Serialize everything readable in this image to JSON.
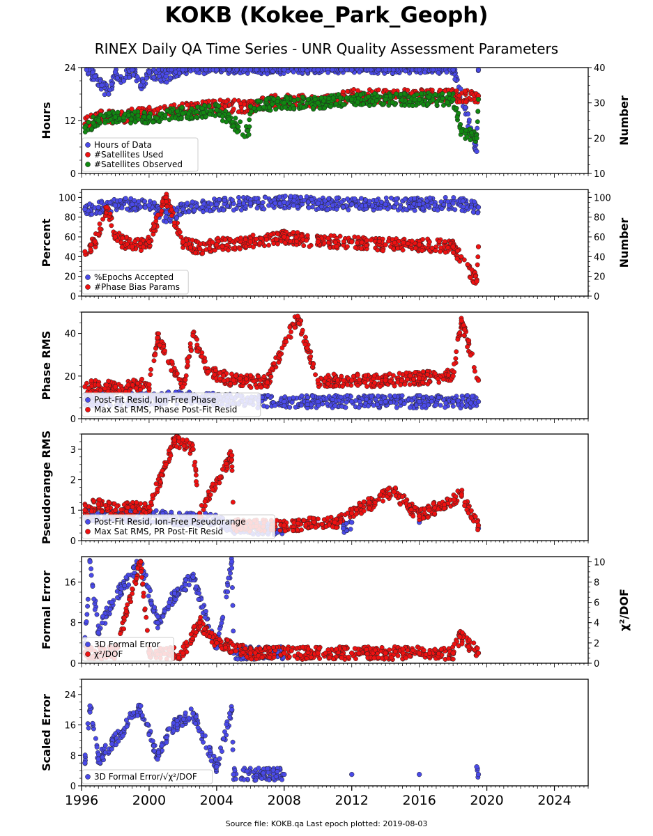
{
  "title": "KOKB (Kokee_Park_Geoph)",
  "subtitle": "RINEX Daily QA Time Series - UNR Quality Assessment Parameters",
  "footer": "Source file: KOKB.qa Last epoch plotted: 2019-08-03",
  "colors": {
    "blue": "#4a4ae8",
    "red": "#ee1111",
    "green": "#118811"
  },
  "chart_data": {
    "type": "scatter",
    "x_axis": {
      "range": [
        1996,
        2026
      ],
      "ticks": [
        1996,
        2000,
        2004,
        2008,
        2012,
        2016,
        2020,
        2024
      ]
    },
    "panels": [
      {
        "left_label": "Hours",
        "right_label": "Number",
        "left_range": [
          0,
          24
        ],
        "left_ticks": [
          0,
          12,
          24
        ],
        "right_range": [
          10,
          40
        ],
        "right_ticks": [
          10,
          20,
          30,
          40
        ],
        "legend": [
          "Hours of Data",
          "#Satellites Used",
          "#Satellites Observed"
        ],
        "series": [
          {
            "name": "Hours of Data",
            "color": "blue",
            "axis": "left",
            "points": [
              [
                1996.3,
                24
              ],
              [
                1996.8,
                22
              ],
              [
                1997.2,
                20
              ],
              [
                1997.6,
                18
              ],
              [
                1998.0,
                23
              ],
              [
                1998.5,
                21
              ],
              [
                1999.0,
                24
              ],
              [
                1999.5,
                20
              ],
              [
                2000.0,
                23
              ],
              [
                2001.0,
                22
              ],
              [
                2002.0,
                24
              ],
              [
                2004.0,
                24
              ],
              [
                2006.0,
                24
              ],
              [
                2008.0,
                24
              ],
              [
                2010.0,
                24
              ],
              [
                2012.0,
                24
              ],
              [
                2014.0,
                24
              ],
              [
                2016.0,
                24
              ],
              [
                2018.0,
                24
              ],
              [
                2019.5,
                24
              ],
              [
                2019.4,
                5
              ]
            ]
          },
          {
            "name": "#Satellites Used",
            "color": "red",
            "axis": "right",
            "points": [
              [
                1996.2,
                24
              ],
              [
                1997.0,
                26
              ],
              [
                1998.0,
                26
              ],
              [
                2000.0,
                27
              ],
              [
                2002.0,
                28
              ],
              [
                2004.0,
                29
              ],
              [
                2006.0,
                29
              ],
              [
                2008.0,
                31
              ],
              [
                2010.0,
                30
              ],
              [
                2012.0,
                32
              ],
              [
                2014.0,
                32
              ],
              [
                2016.0,
                32
              ],
              [
                2018.0,
                32
              ],
              [
                2019.5,
                32
              ]
            ]
          },
          {
            "name": "#Satellites Observed",
            "color": "green",
            "axis": "right",
            "points": [
              [
                1996.2,
                23
              ],
              [
                1997.0,
                25
              ],
              [
                1998.0,
                26
              ],
              [
                2000.0,
                26
              ],
              [
                2002.0,
                27
              ],
              [
                2004.0,
                28
              ],
              [
                2006.0,
                29
              ],
              [
                2008.0,
                30
              ],
              [
                2010.0,
                30
              ],
              [
                2012.0,
                31
              ],
              [
                2014.0,
                31
              ],
              [
                2016.0,
                31
              ],
              [
                2018.0,
                31
              ],
              [
                2019.5,
                31
              ],
              [
                2005.9,
                21
              ],
              [
                2018.5,
                22
              ],
              [
                2019.4,
                20
              ]
            ]
          }
        ]
      },
      {
        "left_label": "Percent",
        "right_label": "Number",
        "left_range": [
          0,
          108
        ],
        "left_ticks": [
          0,
          20,
          40,
          60,
          80,
          100
        ],
        "right_range": [
          0,
          108
        ],
        "right_ticks": [
          0,
          20,
          40,
          60,
          80,
          100
        ],
        "legend": [
          "%Epochs Accepted",
          "#Phase Bias Params"
        ],
        "series": [
          {
            "name": "%Epochs Accepted",
            "color": "blue",
            "axis": "left",
            "points": [
              [
                1996.2,
                88
              ],
              [
                1997.0,
                90
              ],
              [
                1998.0,
                92
              ],
              [
                1999.0,
                93
              ],
              [
                2000.0,
                92
              ],
              [
                2001.0,
                80
              ],
              [
                2002.0,
                88
              ],
              [
                2004.0,
                93
              ],
              [
                2006.0,
                94
              ],
              [
                2008.0,
                95
              ],
              [
                2010.0,
                94
              ],
              [
                2012.0,
                93
              ],
              [
                2014.0,
                93
              ],
              [
                2016.0,
                93
              ],
              [
                2018.0,
                94
              ],
              [
                2019.5,
                90
              ]
            ]
          },
          {
            "name": "#Phase Bias Params",
            "color": "red",
            "axis": "left",
            "points": [
              [
                1996.2,
                45
              ],
              [
                1996.8,
                55
              ],
              [
                1997.5,
                90
              ],
              [
                1998.0,
                60
              ],
              [
                1999.0,
                50
              ],
              [
                2000.0,
                55
              ],
              [
                2001.0,
                100
              ],
              [
                2002.0,
                55
              ],
              [
                2003.0,
                48
              ],
              [
                2004.0,
                52
              ],
              [
                2006.0,
                55
              ],
              [
                2008.0,
                60
              ],
              [
                2010.0,
                55
              ],
              [
                2012.0,
                55
              ],
              [
                2014.0,
                52
              ],
              [
                2016.0,
                52
              ],
              [
                2018.0,
                50
              ],
              [
                2019.5,
                50
              ],
              [
                2019.4,
                15
              ]
            ]
          }
        ]
      },
      {
        "left_label": "Phase RMS",
        "right_label": "",
        "left_range": [
          0,
          50
        ],
        "left_ticks": [
          0,
          20,
          40
        ],
        "legend": [
          "Post-Fit Resid, Ion-Free Phase",
          "Max Sat RMS, Phase Post-Fit Resid"
        ],
        "series": [
          {
            "name": "Post-Fit Resid, Ion-Free Phase",
            "color": "blue",
            "axis": "left",
            "points": [
              [
                1996.2,
                9
              ],
              [
                1998.0,
                9
              ],
              [
                2000.0,
                9
              ],
              [
                2002.0,
                10
              ],
              [
                2004.0,
                9
              ],
              [
                2006.0,
                8
              ],
              [
                2008.0,
                8
              ],
              [
                2010.0,
                8
              ],
              [
                2012.0,
                8
              ],
              [
                2014.0,
                8
              ],
              [
                2016.0,
                8
              ],
              [
                2018.0,
                8
              ],
              [
                2019.5,
                8
              ]
            ]
          },
          {
            "name": "Max Sat RMS, Phase Post-Fit Resid",
            "color": "red",
            "axis": "left",
            "points": [
              [
                1996.2,
                15
              ],
              [
                1998.0,
                15
              ],
              [
                2000.0,
                16
              ],
              [
                2000.5,
                38
              ],
              [
                2002.0,
                15
              ],
              [
                2002.6,
                39
              ],
              [
                2003.5,
                22
              ],
              [
                2005.0,
                18
              ],
              [
                2007.0,
                17
              ],
              [
                2008.8,
                48
              ],
              [
                2010.0,
                18
              ],
              [
                2012.0,
                18
              ],
              [
                2014.0,
                18
              ],
              [
                2016.0,
                19
              ],
              [
                2018.0,
                20
              ],
              [
                2018.5,
                46
              ],
              [
                2019.5,
                18
              ]
            ]
          }
        ]
      },
      {
        "left_label": "Pseudorange RMS",
        "right_label": "",
        "left_range": [
          0,
          3.5
        ],
        "left_ticks": [
          0,
          1,
          2,
          3
        ],
        "legend": [
          "Post-Fit Resid, Ion-Free Pseudorange",
          "Max Sat RMS, PR Post-Fit Resid"
        ],
        "series": [
          {
            "name": "Post-Fit Resid, Ion-Free Pseudorange",
            "color": "blue",
            "axis": "left",
            "points": [
              [
                1996.2,
                0.8
              ],
              [
                1998.0,
                0.8
              ],
              [
                2000.0,
                0.8
              ],
              [
                2002.0,
                0.7
              ],
              [
                2004.0,
                0.7
              ],
              [
                2005.0,
                0.4
              ],
              [
                2008.0,
                0.4
              ],
              [
                2011.5,
                0.4
              ],
              [
                2012.0,
                0.6
              ],
              [
                2016.0,
                0.6
              ],
              [
                2019.5,
                0.4
              ]
            ]
          },
          {
            "name": "Max Sat RMS, PR Post-Fit Resid",
            "color": "red",
            "axis": "left",
            "points": [
              [
                1996.2,
                1.0
              ],
              [
                1997.0,
                1.2
              ],
              [
                1998.0,
                1.0
              ],
              [
                2000.0,
                1.1
              ],
              [
                2001.0,
                2.5
              ],
              [
                2001.5,
                3.3
              ],
              [
                2002.6,
                3.0
              ],
              [
                2003.0,
                0.9
              ],
              [
                2004.9,
                2.8
              ],
              [
                2005.0,
                0.5
              ],
              [
                2008.0,
                0.5
              ],
              [
                2011.0,
                0.6
              ],
              [
                2012.0,
                0.9
              ],
              [
                2014.5,
                1.6
              ],
              [
                2016.0,
                0.8
              ],
              [
                2018.5,
                1.5
              ],
              [
                2019.5,
                0.5
              ]
            ]
          }
        ]
      },
      {
        "left_label": "Formal Error",
        "right_label": "χ²/DOF",
        "left_range": [
          0,
          21
        ],
        "left_ticks": [
          0,
          8,
          16
        ],
        "right_range": [
          0,
          10.5
        ],
        "right_ticks": [
          0,
          2,
          4,
          6,
          8,
          10
        ],
        "legend": [
          "3D Formal Error",
          "χ²/DOF"
        ],
        "series": [
          {
            "name": "3D Formal Error",
            "color": "blue",
            "axis": "left",
            "points": [
              [
                1996.2,
                4
              ],
              [
                1996.5,
                20
              ],
              [
                1997.0,
                6
              ],
              [
                1997.8,
                12
              ],
              [
                1999.5,
                20
              ],
              [
                2000.5,
                8
              ],
              [
                2001.2,
                12
              ],
              [
                2002.6,
                17
              ],
              [
                2004.0,
                3
              ],
              [
                2004.9,
                20
              ],
              [
                2005.0,
                2
              ],
              [
                2008.0,
                2
              ],
              [
                2012.0,
                2
              ],
              [
                2016.0,
                2
              ],
              [
                2019.5,
                2
              ]
            ]
          },
          {
            "name": "χ²/DOF",
            "color": "red",
            "axis": "right",
            "points": [
              [
                1996.2,
                1
              ],
              [
                1998.0,
                1
              ],
              [
                1999.5,
                10
              ],
              [
                2000.0,
                1
              ],
              [
                2002.0,
                1
              ],
              [
                2003.0,
                4
              ],
              [
                2004.0,
                2
              ],
              [
                2006.0,
                1
              ],
              [
                2008.0,
                1
              ],
              [
                2010.0,
                1
              ],
              [
                2012.0,
                1
              ],
              [
                2014.0,
                1
              ],
              [
                2016.0,
                1
              ],
              [
                2018.0,
                1
              ],
              [
                2018.4,
                2.6
              ],
              [
                2019.5,
                1
              ]
            ]
          }
        ]
      },
      {
        "left_label": "Scaled Error",
        "right_label": "",
        "left_range": [
          0,
          28
        ],
        "left_ticks": [
          0,
          8,
          16,
          24
        ],
        "legend": [
          "3D Formal Error/√χ²/DOF"
        ],
        "series": [
          {
            "name": "3D Formal Error/√χ²/DOF",
            "color": "blue",
            "axis": "left",
            "points": [
              [
                1996.2,
                6
              ],
              [
                1996.5,
                21
              ],
              [
                1997.0,
                7
              ],
              [
                1997.8,
                11
              ],
              [
                1999.5,
                21
              ],
              [
                2000.5,
                7
              ],
              [
                2001.2,
                15
              ],
              [
                2002.6,
                19
              ],
              [
                2004.0,
                5
              ],
              [
                2004.9,
                20
              ],
              [
                2005.0,
                3
              ],
              [
                2008.0,
                3
              ],
              [
                2012.0,
                3
              ],
              [
                2016.0,
                3
              ],
              [
                2019.4,
                5
              ],
              [
                2019.5,
                3
              ]
            ]
          }
        ]
      }
    ]
  }
}
